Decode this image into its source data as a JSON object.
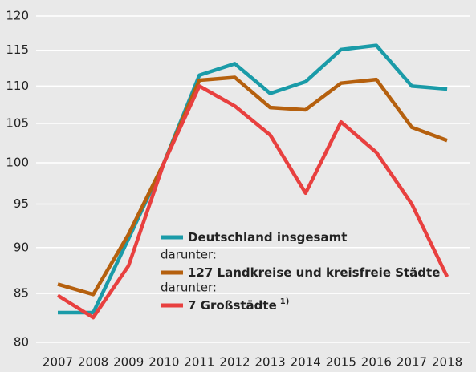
{
  "chart_data": {
    "type": "line",
    "categories": [
      "2007",
      "2008",
      "2009",
      "2010",
      "2011",
      "2012",
      "2013",
      "2014",
      "2015",
      "2016",
      "2017",
      "2018"
    ],
    "series": [
      {
        "name": "Deutschland insgesamt",
        "color": "#1a9ba8",
        "values": [
          83,
          83,
          91,
          100,
          111.5,
          113.1,
          109,
          110.6,
          115.1,
          115.7,
          110,
          109.6
        ]
      },
      {
        "name": "127 Landkreise und kreisfreie Städte",
        "color": "#b5600e",
        "values": [
          86,
          84.9,
          91.5,
          100,
          110.8,
          111.2,
          107.1,
          106.8,
          110.4,
          110.9,
          104.5,
          102.8
        ]
      },
      {
        "name": "7 Großstädte",
        "name_superscript": "1)",
        "color": "#e8403f",
        "values": [
          84.8,
          82.5,
          88,
          100,
          110,
          107.3,
          103.5,
          96.3,
          105.2,
          101.3,
          95,
          86.8
        ]
      }
    ],
    "legend_notes": [
      "darunter:",
      "darunter:"
    ],
    "ylim": [
      80,
      120
    ],
    "yticks": [
      80,
      85,
      90,
      95,
      100,
      105,
      110,
      115,
      120
    ],
    "log_y": true,
    "grid": true
  }
}
